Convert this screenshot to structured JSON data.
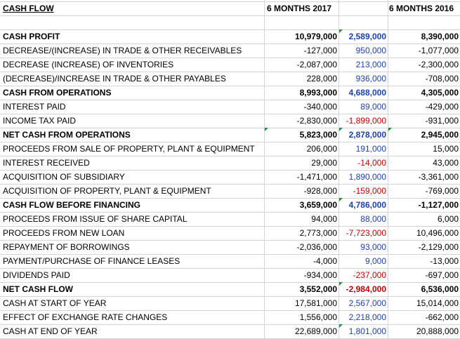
{
  "colors": {
    "negative": "#c00000",
    "positive": "#1f3fa8",
    "gridline": "#d4d4d4",
    "marker": "#1f8f3a"
  },
  "header": {
    "title": "CASH FLOW",
    "col_2017": "6 MONTHS 2017",
    "col_2016": "6 MONTHS 2016"
  },
  "rows": [
    {
      "label": "CASH PROFIT",
      "bold": true,
      "a": "10,979,000",
      "b": "2,589,000",
      "c": "8,390,000"
    },
    {
      "label": "DECREASE/(INCREASE) IN TRADE & OTHER RECEIVABLES",
      "bold": false,
      "a": "-127,000",
      "b": "950,000",
      "c": "-1,077,000"
    },
    {
      "label": "DECREASE (INCREASE) OF INVENTORIES",
      "bold": false,
      "a": "-2,087,000",
      "b": "213,000",
      "c": "-2,300,000"
    },
    {
      "label": "(DECREASE)/INCREASE IN TRADE & OTHER PAYABLES",
      "bold": false,
      "a": "228,000",
      "b": "936,000",
      "c": "-708,000"
    },
    {
      "label": "CASH FROM OPERATIONS",
      "bold": true,
      "a": "8,993,000",
      "b": "4,688,000",
      "c": "4,305,000"
    },
    {
      "label": "INTEREST PAID",
      "bold": false,
      "a": "-340,000",
      "b": "89,000",
      "c": "-429,000"
    },
    {
      "label": "INCOME TAX PAID",
      "bold": false,
      "a": "-2,830,000",
      "b": "-1,899,000",
      "c": "-931,000"
    },
    {
      "label": "NET CASH FROM OPERATIONS",
      "bold": true,
      "a": "5,823,000",
      "b": "2,878,000",
      "c": "2,945,000"
    },
    {
      "label": "PROCEEDS FROM SALE OF PROPERTY, PLANT & EQUIPMENT",
      "bold": false,
      "a": "206,000",
      "b": "191,000",
      "c": "15,000"
    },
    {
      "label": "INTEREST RECEIVED",
      "bold": false,
      "a": "29,000",
      "b": "-14,000",
      "c": "43,000"
    },
    {
      "label": "ACQUISITION OF SUBSIDIARY",
      "bold": false,
      "a": "-1,471,000",
      "b": "1,890,000",
      "c": "-3,361,000"
    },
    {
      "label": "ACQUISITION OF PROPERTY, PLANT & EQUIPMENT",
      "bold": false,
      "a": "-928,000",
      "b": "-159,000",
      "c": "-769,000"
    },
    {
      "label": "CASH FLOW BEFORE FINANCING",
      "bold": true,
      "a": "3,659,000",
      "b": "4,786,000",
      "c": "-1,127,000"
    },
    {
      "label": "PROCEEDS FROM ISSUE OF SHARE CAPITAL",
      "bold": false,
      "a": "94,000",
      "b": "88,000",
      "c": "6,000"
    },
    {
      "label": "PROCEEDS FROM NEW LOAN",
      "bold": false,
      "a": "2,773,000",
      "b": "-7,723,000",
      "c": "10,496,000"
    },
    {
      "label": "REPAYMENT OF BORROWINGS",
      "bold": false,
      "a": "-2,036,000",
      "b": "93,000",
      "c": "-2,129,000"
    },
    {
      "label": "PAYMENT/PURCHASE OF FINANCE LEASES",
      "bold": false,
      "a": "-4,000",
      "b": "9,000",
      "c": "-13,000"
    },
    {
      "label": "DIVIDENDS PAID",
      "bold": false,
      "a": "-934,000",
      "b": "-237,000",
      "c": "-697,000"
    },
    {
      "label": "NET CASH FLOW",
      "bold": true,
      "a": "3,552,000",
      "b": "-2,984,000",
      "c": "6,536,000"
    },
    {
      "label": "CASH AT START OF YEAR",
      "bold": false,
      "a": "17,581,000",
      "b": "2,567,000",
      "c": "15,014,000"
    },
    {
      "label": "EFFECT OF EXCHANGE RATE CHANGES",
      "bold": false,
      "a": "1,556,000",
      "b": "2,218,000",
      "c": "-662,000"
    },
    {
      "label": "CASH AT END OF YEAR",
      "bold": false,
      "a": "22,689,000",
      "b": "1,801,000",
      "c": "20,888,000"
    }
  ]
}
